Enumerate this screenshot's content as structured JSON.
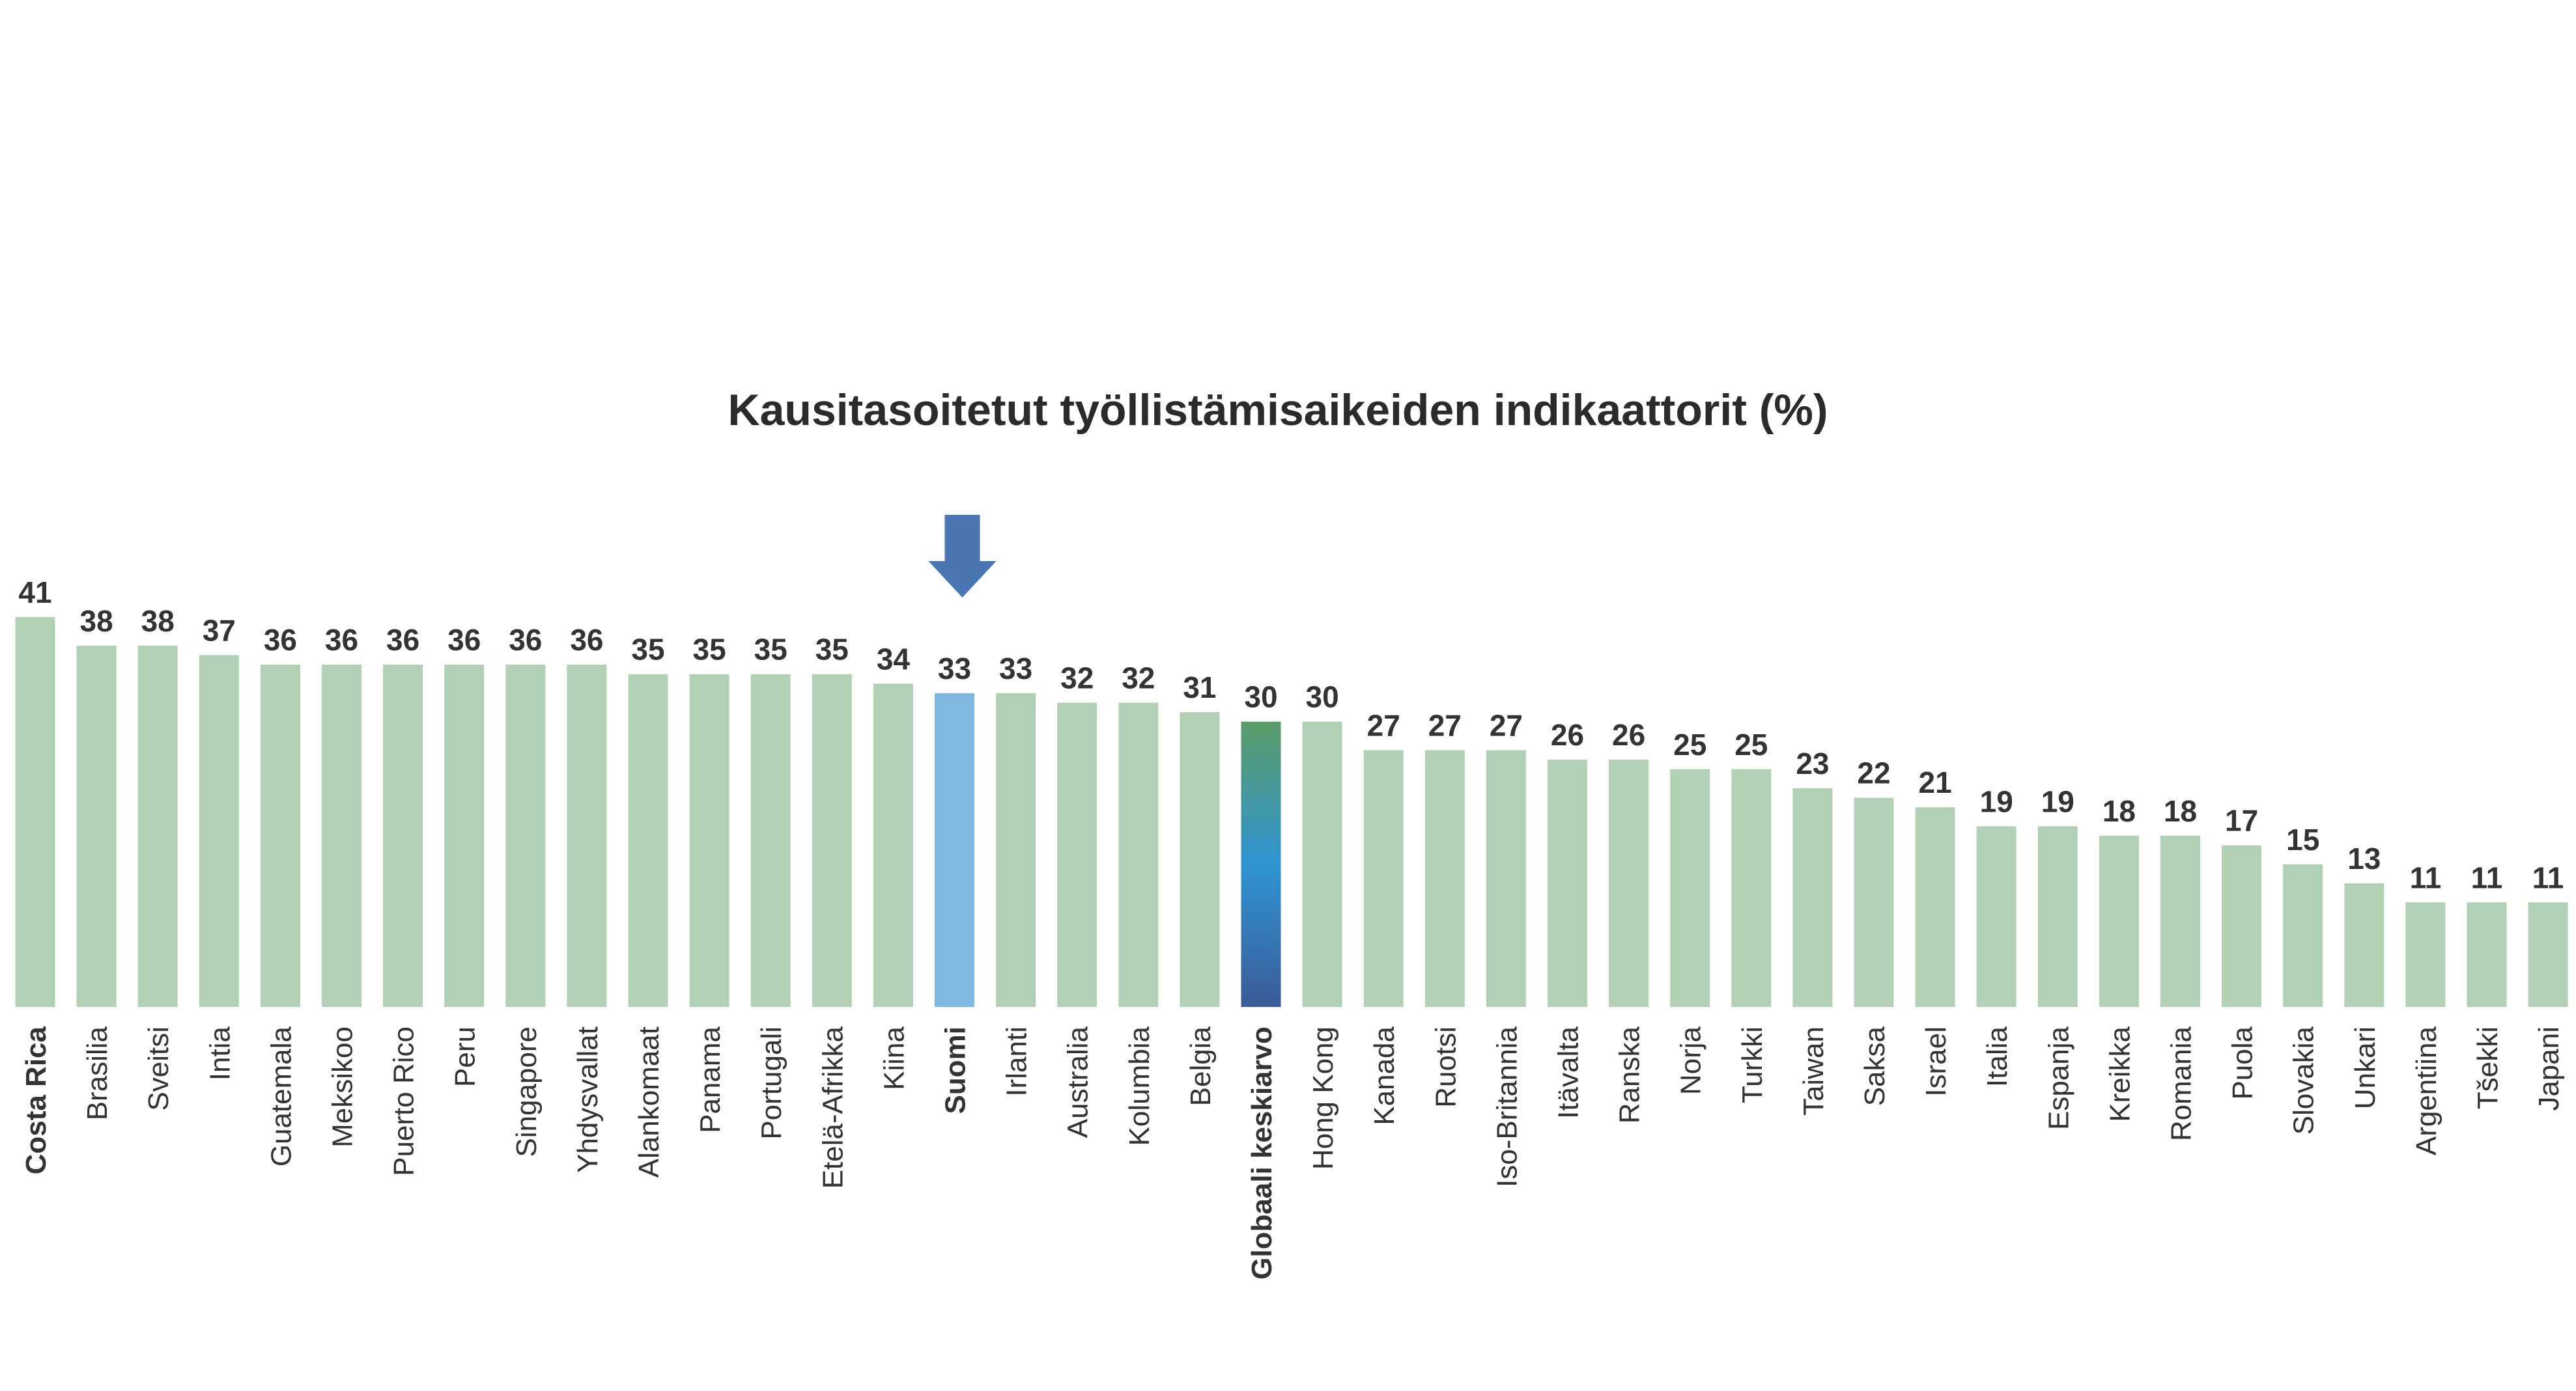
{
  "chart_data": {
    "type": "bar",
    "title": "Kausitasoitetut työllistämisaikeiden indikaattorit (%)",
    "xlabel": "",
    "ylabel": "",
    "ylim": [
      0,
      41
    ],
    "grid": false,
    "categories": [
      "Costa Rica",
      "Brasilia",
      "Sveitsi",
      "Intia",
      "Guatemala",
      "Meksikoo",
      "Puerto Rico",
      "Peru",
      "Singapore",
      "Yhdysvallat",
      "Alankomaat",
      "Panama",
      "Portugali",
      "Etelä-Afrikka",
      "Kiina",
      "Suomi",
      "Irlanti",
      "Australia",
      "Kolumbia",
      "Belgia",
      "Globaali keskiarvo",
      "Hong Kong",
      "Kanada",
      "Ruotsi",
      "Iso-Britannia",
      "Itävalta",
      "Ranska",
      "Norja",
      "Turkki",
      "Taiwan",
      "Saksa",
      "Israel",
      "Italia",
      "Espanja",
      "Kreikka",
      "Romania",
      "Puola",
      "Slovakia",
      "Unkari",
      "Argentiina",
      "Tšekki",
      "Japani"
    ],
    "values": [
      41,
      38,
      38,
      37,
      36,
      36,
      36,
      36,
      36,
      36,
      35,
      35,
      35,
      35,
      34,
      33,
      33,
      32,
      32,
      31,
      30,
      30,
      27,
      27,
      27,
      26,
      26,
      25,
      25,
      23,
      22,
      21,
      19,
      19,
      18,
      18,
      17,
      15,
      13,
      11,
      11,
      11
    ],
    "bold_categories": [
      "Costa Rica",
      "Suomi",
      "Globaali keskiarvo"
    ],
    "highlight": {
      "category": "Suomi",
      "marker": "down-arrow-icon"
    },
    "colors": {
      "bar": "#b2d1b4",
      "highlight": "#80b9e0",
      "average_top": "#5a9c68",
      "average_mid": "#3094d2",
      "average_bottom": "#3b5b98",
      "arrow": "#4a77b4",
      "text": "#333333"
    }
  }
}
